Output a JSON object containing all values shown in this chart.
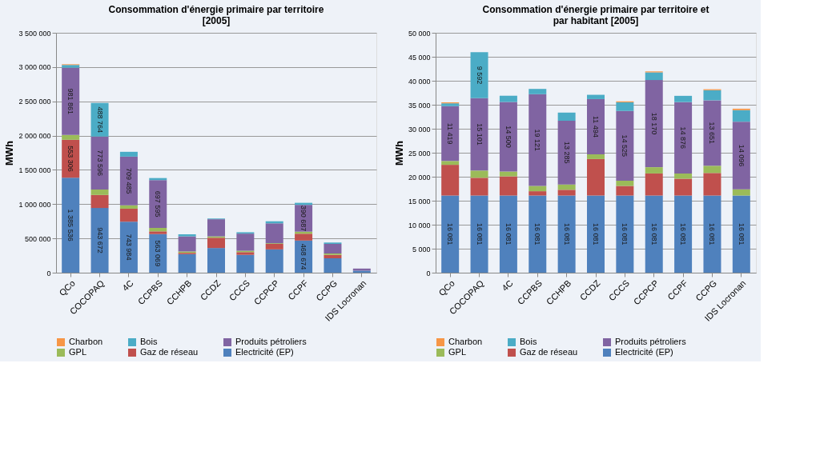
{
  "chart_data": [
    {
      "type": "bar",
      "stacked": true,
      "title": "Consommation d'énergie primaire par territoire [2005]",
      "ylabel": "MWh",
      "categories": [
        "QCo",
        "COCOPAQ",
        "4C",
        "CCPBS",
        "CCHPB",
        "CCDZ",
        "CCCS",
        "CCPCP",
        "CCPF",
        "CCPG",
        "IDS Locronan"
      ],
      "ylim": [
        0,
        3500000
      ],
      "yticks": [
        {
          "value": 0,
          "label": "0"
        },
        {
          "value": 500000,
          "label": "500 000"
        },
        {
          "value": 1000000,
          "label": "1 000 000"
        },
        {
          "value": 1500000,
          "label": "1 500 000"
        },
        {
          "value": 2000000,
          "label": "2 000 000"
        },
        {
          "value": 2500000,
          "label": "2 500 000"
        },
        {
          "value": 3000000,
          "label": "3 000 000"
        },
        {
          "value": 3500000,
          "label": "3 500 000"
        }
      ],
      "grid": "y",
      "legend": "bottom",
      "series": [
        {
          "name": "Electricité (EP)",
          "color": "#4f81bd",
          "values": [
            1385536,
            943672,
            743984,
            563069,
            270000,
            360000,
            260000,
            340000,
            468674,
            210000,
            30000
          ],
          "value_labels": [
            "1 385 536",
            "943 672",
            "743 984",
            "563 069",
            null,
            null,
            null,
            null,
            "468 674",
            null,
            null
          ]
        },
        {
          "name": "Gaz de réseau",
          "color": "#c0504d",
          "values": [
            553306,
            190000,
            190000,
            40000,
            20000,
            150000,
            40000,
            80000,
            100000,
            50000,
            null
          ],
          "value_labels": [
            "553 306",
            null,
            null,
            null,
            null,
            null,
            null,
            null,
            null,
            null,
            null
          ]
        },
        {
          "name": "GPL",
          "color": "#9bbb59",
          "values": [
            70000,
            80000,
            50000,
            50000,
            20000,
            20000,
            20000,
            10000,
            30000,
            20000,
            null
          ]
        },
        {
          "name": "Produits pétroliers",
          "color": "#8064a2",
          "values": [
            981861,
            773596,
            709485,
            697595,
            220000,
            250000,
            250000,
            290000,
            390687,
            140000,
            30000
          ],
          "value_labels": [
            "981 861",
            "773 596",
            "709 485",
            "697 595",
            null,
            null,
            null,
            null,
            "390 687",
            null,
            null
          ]
        },
        {
          "name": "Bois",
          "color": "#4bacc6",
          "values": [
            40000,
            488764,
            70000,
            30000,
            30000,
            10000,
            20000,
            30000,
            30000,
            20000,
            null
          ],
          "value_labels": [
            null,
            "488 764",
            null,
            null,
            null,
            null,
            null,
            null,
            null,
            null,
            null
          ]
        },
        {
          "name": "Charbon",
          "color": "#f79646",
          "values": [
            10000,
            null,
            null,
            null,
            null,
            null,
            null,
            null,
            null,
            null,
            null
          ]
        }
      ]
    },
    {
      "type": "bar",
      "stacked": true,
      "title": "Consommation d'énergie primaire par territoire et par habitant [2005]",
      "ylabel": "MWh",
      "categories": [
        "QCo",
        "COCOPAQ",
        "4C",
        "CCPBS",
        "CCHPB",
        "CCDZ",
        "CCCS",
        "CCPCP",
        "CCPF",
        "CCPG",
        "IDS Locronan"
      ],
      "ylim": [
        0,
        50000
      ],
      "yticks": [
        {
          "value": 0,
          "label": "0"
        },
        {
          "value": 5000,
          "label": "5 000"
        },
        {
          "value": 10000,
          "label": "10 000"
        },
        {
          "value": 15000,
          "label": "15 000"
        },
        {
          "value": 20000,
          "label": "20 000"
        },
        {
          "value": 25000,
          "label": "25 000"
        },
        {
          "value": 30000,
          "label": "30 000"
        },
        {
          "value": 35000,
          "label": "35 000"
        },
        {
          "value": 40000,
          "label": "40 000"
        },
        {
          "value": 45000,
          "label": "45 000"
        },
        {
          "value": 50000,
          "label": "50 000"
        }
      ],
      "grid": "y",
      "legend": "bottom",
      "series": [
        {
          "name": "Electricité (EP)",
          "color": "#4f81bd",
          "values": [
            16081,
            16081,
            16081,
            16081,
            16081,
            16081,
            16081,
            16081,
            16081,
            16081,
            16081
          ],
          "value_labels": [
            "16 081",
            "16 081",
            "16 081",
            "16 081",
            "16 081",
            "16 081",
            "16 081",
            "16 081",
            "16 081",
            "16 081",
            "16 081"
          ]
        },
        {
          "name": "Gaz de réseau",
          "color": "#c0504d",
          "values": [
            6400,
            3700,
            4000,
            900,
            1200,
            7600,
            2000,
            4600,
            3500,
            4700,
            null
          ]
        },
        {
          "name": "GPL",
          "color": "#9bbb59",
          "values": [
            800,
            1500,
            1000,
            1100,
            1100,
            1000,
            1100,
            1300,
            1100,
            1500,
            1300
          ]
        },
        {
          "name": "Produits pétroliers",
          "color": "#8064a2",
          "values": [
            11419,
            15101,
            14500,
            19121,
            13285,
            11494,
            14525,
            18170,
            14876,
            13651,
            14096
          ],
          "value_labels": [
            "11 419",
            "15 101",
            "14 500",
            "19 121",
            "13 285",
            "11 494",
            "14 525",
            "18 170",
            "14 876",
            "13 651",
            "14 096"
          ]
        },
        {
          "name": "Bois",
          "color": "#4bacc6",
          "values": [
            600,
            9592,
            1300,
            1100,
            1700,
            900,
            1800,
            1600,
            1300,
            2100,
            2400
          ],
          "value_labels": [
            null,
            "9 592",
            null,
            null,
            null,
            null,
            null,
            null,
            null,
            null,
            null
          ]
        },
        {
          "name": "Charbon",
          "color": "#f79646",
          "values": [
            200,
            null,
            null,
            null,
            null,
            null,
            200,
            200,
            null,
            200,
            300
          ]
        }
      ]
    }
  ]
}
